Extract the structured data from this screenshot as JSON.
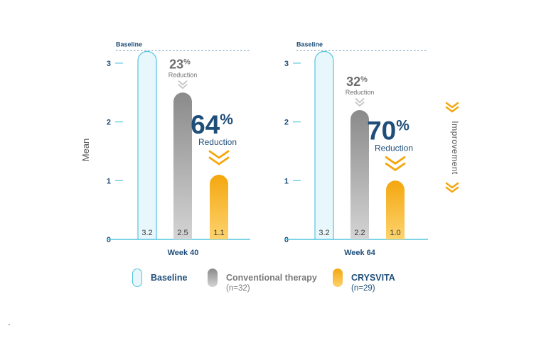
{
  "chart_data": {
    "type": "bar",
    "ylabel": "Mean",
    "yticks": [
      0,
      1,
      2,
      3
    ],
    "ylim": [
      0,
      3.2
    ],
    "side_label": "Improvement",
    "colors": {
      "baseline": "#54c5df",
      "baseline_fill": "#e8f7fb",
      "conventional_dark": "#8a8a8a",
      "conventional_light": "#d4d4d4",
      "crysvita_dark": "#f4a70f",
      "crysvita_light": "#fdd36e",
      "navy": "#1f4e79",
      "axis": "#54c5df"
    },
    "panels": [
      {
        "xlabel": "Week 40",
        "baseline_label": "Baseline",
        "values": [
          3.2,
          2.5,
          1.1
        ],
        "value_labels": [
          "3.2",
          "2.5",
          "1.1"
        ],
        "conventional_callout": {
          "number": "23",
          "pct": "%",
          "word": "Reduction"
        },
        "crysvita_callout": {
          "number": "64",
          "pct": "%",
          "word": "Reduction"
        }
      },
      {
        "xlabel": "Week 64",
        "baseline_label": "Baseline",
        "values": [
          3.2,
          2.2,
          1.0
        ],
        "value_labels": [
          "3.2",
          "2.2",
          "1.0"
        ],
        "conventional_callout": {
          "number": "32",
          "pct": "%",
          "word": "Reduction"
        },
        "crysvita_callout": {
          "number": "70",
          "pct": "%",
          "word": "Reduction"
        }
      }
    ],
    "legend": [
      {
        "name": "Baseline",
        "sub": ""
      },
      {
        "name": "Conventional therapy",
        "sub": "(n=32)"
      },
      {
        "name": "CRYSVITA",
        "sub": "(n=29)"
      }
    ]
  }
}
